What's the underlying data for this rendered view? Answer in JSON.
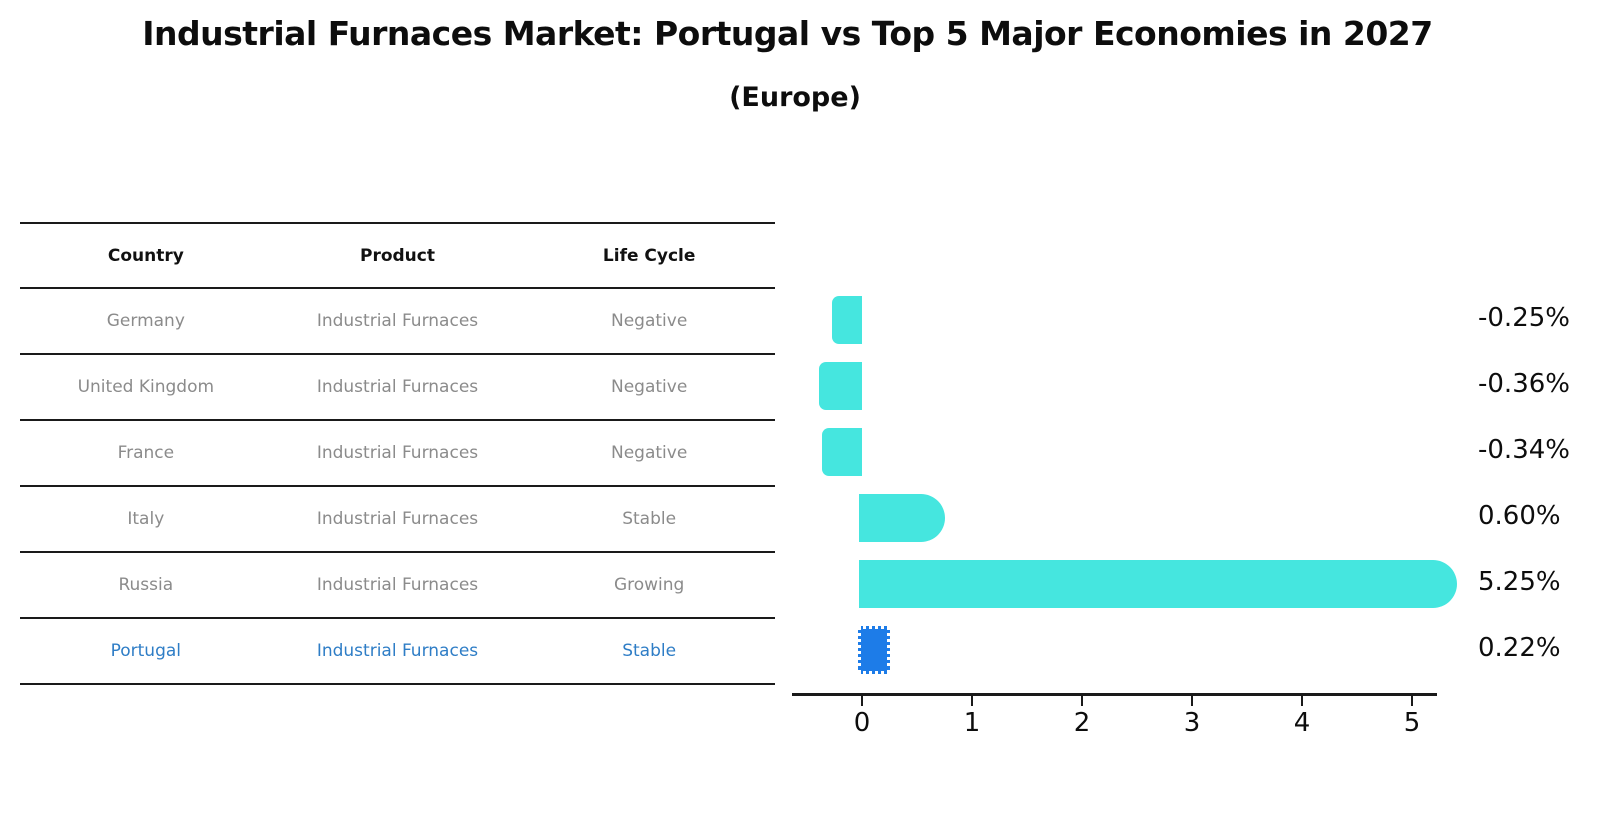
{
  "chart_data": {
    "type": "bar",
    "orientation": "horizontal",
    "title": "Industrial Furnaces Market: Portugal vs Top 5 Major Economies in 2027",
    "subtitle": "(Europe)",
    "xlabel": "",
    "ylabel": "",
    "categories": [
      "Germany",
      "United Kingdom",
      "France",
      "Italy",
      "Russia",
      "Portugal"
    ],
    "values": [
      -0.25,
      -0.36,
      -0.34,
      0.6,
      5.25,
      0.22
    ],
    "value_labels": [
      "-0.25%",
      "-0.36%",
      "-0.34%",
      "0.60%",
      "5.25%",
      "0.22%"
    ],
    "xticks": [
      "0",
      "1",
      "2",
      "3",
      "4",
      "5"
    ],
    "xlim": [
      -0.65,
      5.6
    ],
    "grid": false,
    "legend": false,
    "highlight_index": 5,
    "bar_color": "#45e6df",
    "highlight_bar_color": "#1d7ce8",
    "highlight_text_color": "#2e7dc6",
    "axis_color": "#1a1a1a",
    "label_color": "#0d0d0d",
    "row_text_color": "#8b8b8b"
  },
  "table": {
    "headers": [
      "Country",
      "Product",
      "Life Cycle"
    ],
    "rows": [
      {
        "country": "Germany",
        "product": "Industrial Furnaces",
        "life_cycle": "Negative",
        "highlight": false
      },
      {
        "country": "United Kingdom",
        "product": "Industrial Furnaces",
        "life_cycle": "Negative",
        "highlight": false
      },
      {
        "country": "France",
        "product": "Industrial Furnaces",
        "life_cycle": "Negative",
        "highlight": false
      },
      {
        "country": "Italy",
        "product": "Industrial Furnaces",
        "life_cycle": "Stable",
        "highlight": false
      },
      {
        "country": "Russia",
        "product": "Industrial Furnaces",
        "life_cycle": "Growing",
        "highlight": false
      },
      {
        "country": "Portugal",
        "product": "Industrial Furnaces",
        "life_cycle": "Stable",
        "highlight": true
      }
    ]
  }
}
